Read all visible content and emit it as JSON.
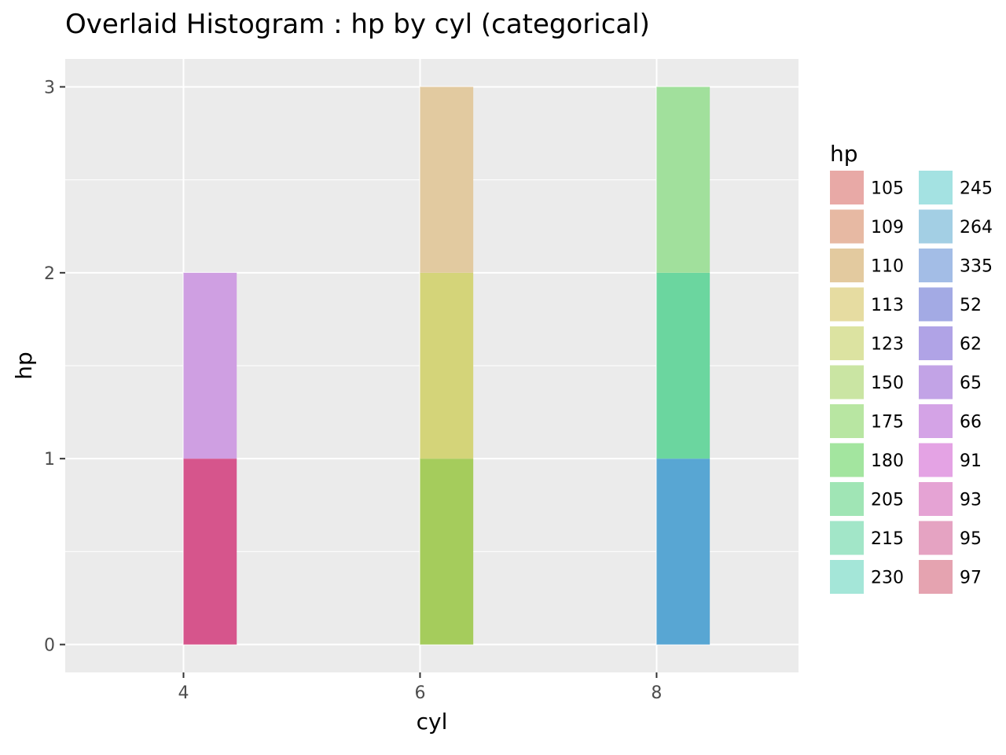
{
  "chart_data": {
    "type": "bar",
    "title": "Overlaid Histogram : hp by cyl (categorical)",
    "xlabel": "cyl",
    "ylabel": "hp",
    "xlim": [
      3,
      9.2
    ],
    "ylim": [
      -0.15,
      3.15
    ],
    "x_ticks": [
      4,
      6,
      8
    ],
    "y_ticks": [
      0,
      1,
      2,
      3
    ],
    "grid": true,
    "bar_width": 0.45,
    "legend": {
      "title": "hp",
      "position": "right",
      "columns": 2,
      "entries": [
        {
          "label": "105",
          "color": "#e8a9a6"
        },
        {
          "label": "109",
          "color": "#e7b9a3"
        },
        {
          "label": "110",
          "color": "#e3ca9f"
        },
        {
          "label": "113",
          "color": "#e6dca1"
        },
        {
          "label": "123",
          "color": "#dce3a1"
        },
        {
          "label": "150",
          "color": "#cae5a3"
        },
        {
          "label": "175",
          "color": "#b8e6a2"
        },
        {
          "label": "180",
          "color": "#a3e59f"
        },
        {
          "label": "205",
          "color": "#a0e5b5"
        },
        {
          "label": "215",
          "color": "#a2e6c8"
        },
        {
          "label": "230",
          "color": "#a4e6d8"
        },
        {
          "label": "245",
          "color": "#a4e2e2"
        },
        {
          "label": "264",
          "color": "#a3cfe4"
        },
        {
          "label": "335",
          "color": "#a3bde6"
        },
        {
          "label": "52",
          "color": "#a3aae4"
        },
        {
          "label": "62",
          "color": "#b0a3e6"
        },
        {
          "label": "65",
          "color": "#c2a3e6"
        },
        {
          "label": "66",
          "color": "#d4a3e6"
        },
        {
          "label": "91",
          "color": "#e4a3e4"
        },
        {
          "label": "93",
          "color": "#e5a3d4"
        },
        {
          "label": "95",
          "color": "#e5a3c2"
        },
        {
          "label": "97",
          "color": "#e5a3b0"
        }
      ]
    },
    "bars": [
      {
        "x": 4,
        "y0": 0,
        "y1": 1,
        "color": "#d6558c"
      },
      {
        "x": 4,
        "y0": 1,
        "y1": 2,
        "color": "#cf9fe2"
      },
      {
        "x": 6,
        "y0": 0,
        "y1": 1,
        "color": "#a5cc5c"
      },
      {
        "x": 6,
        "y0": 1,
        "y1": 2,
        "color": "#d4d479"
      },
      {
        "x": 6,
        "y0": 2,
        "y1": 3,
        "color": "#e2caa0"
      },
      {
        "x": 8,
        "y0": 0,
        "y1": 1,
        "color": "#58a6d3"
      },
      {
        "x": 8,
        "y0": 1,
        "y1": 2,
        "color": "#6bd69f"
      },
      {
        "x": 8,
        "y0": 2,
        "y1": 3,
        "color": "#a1e09c"
      }
    ]
  }
}
